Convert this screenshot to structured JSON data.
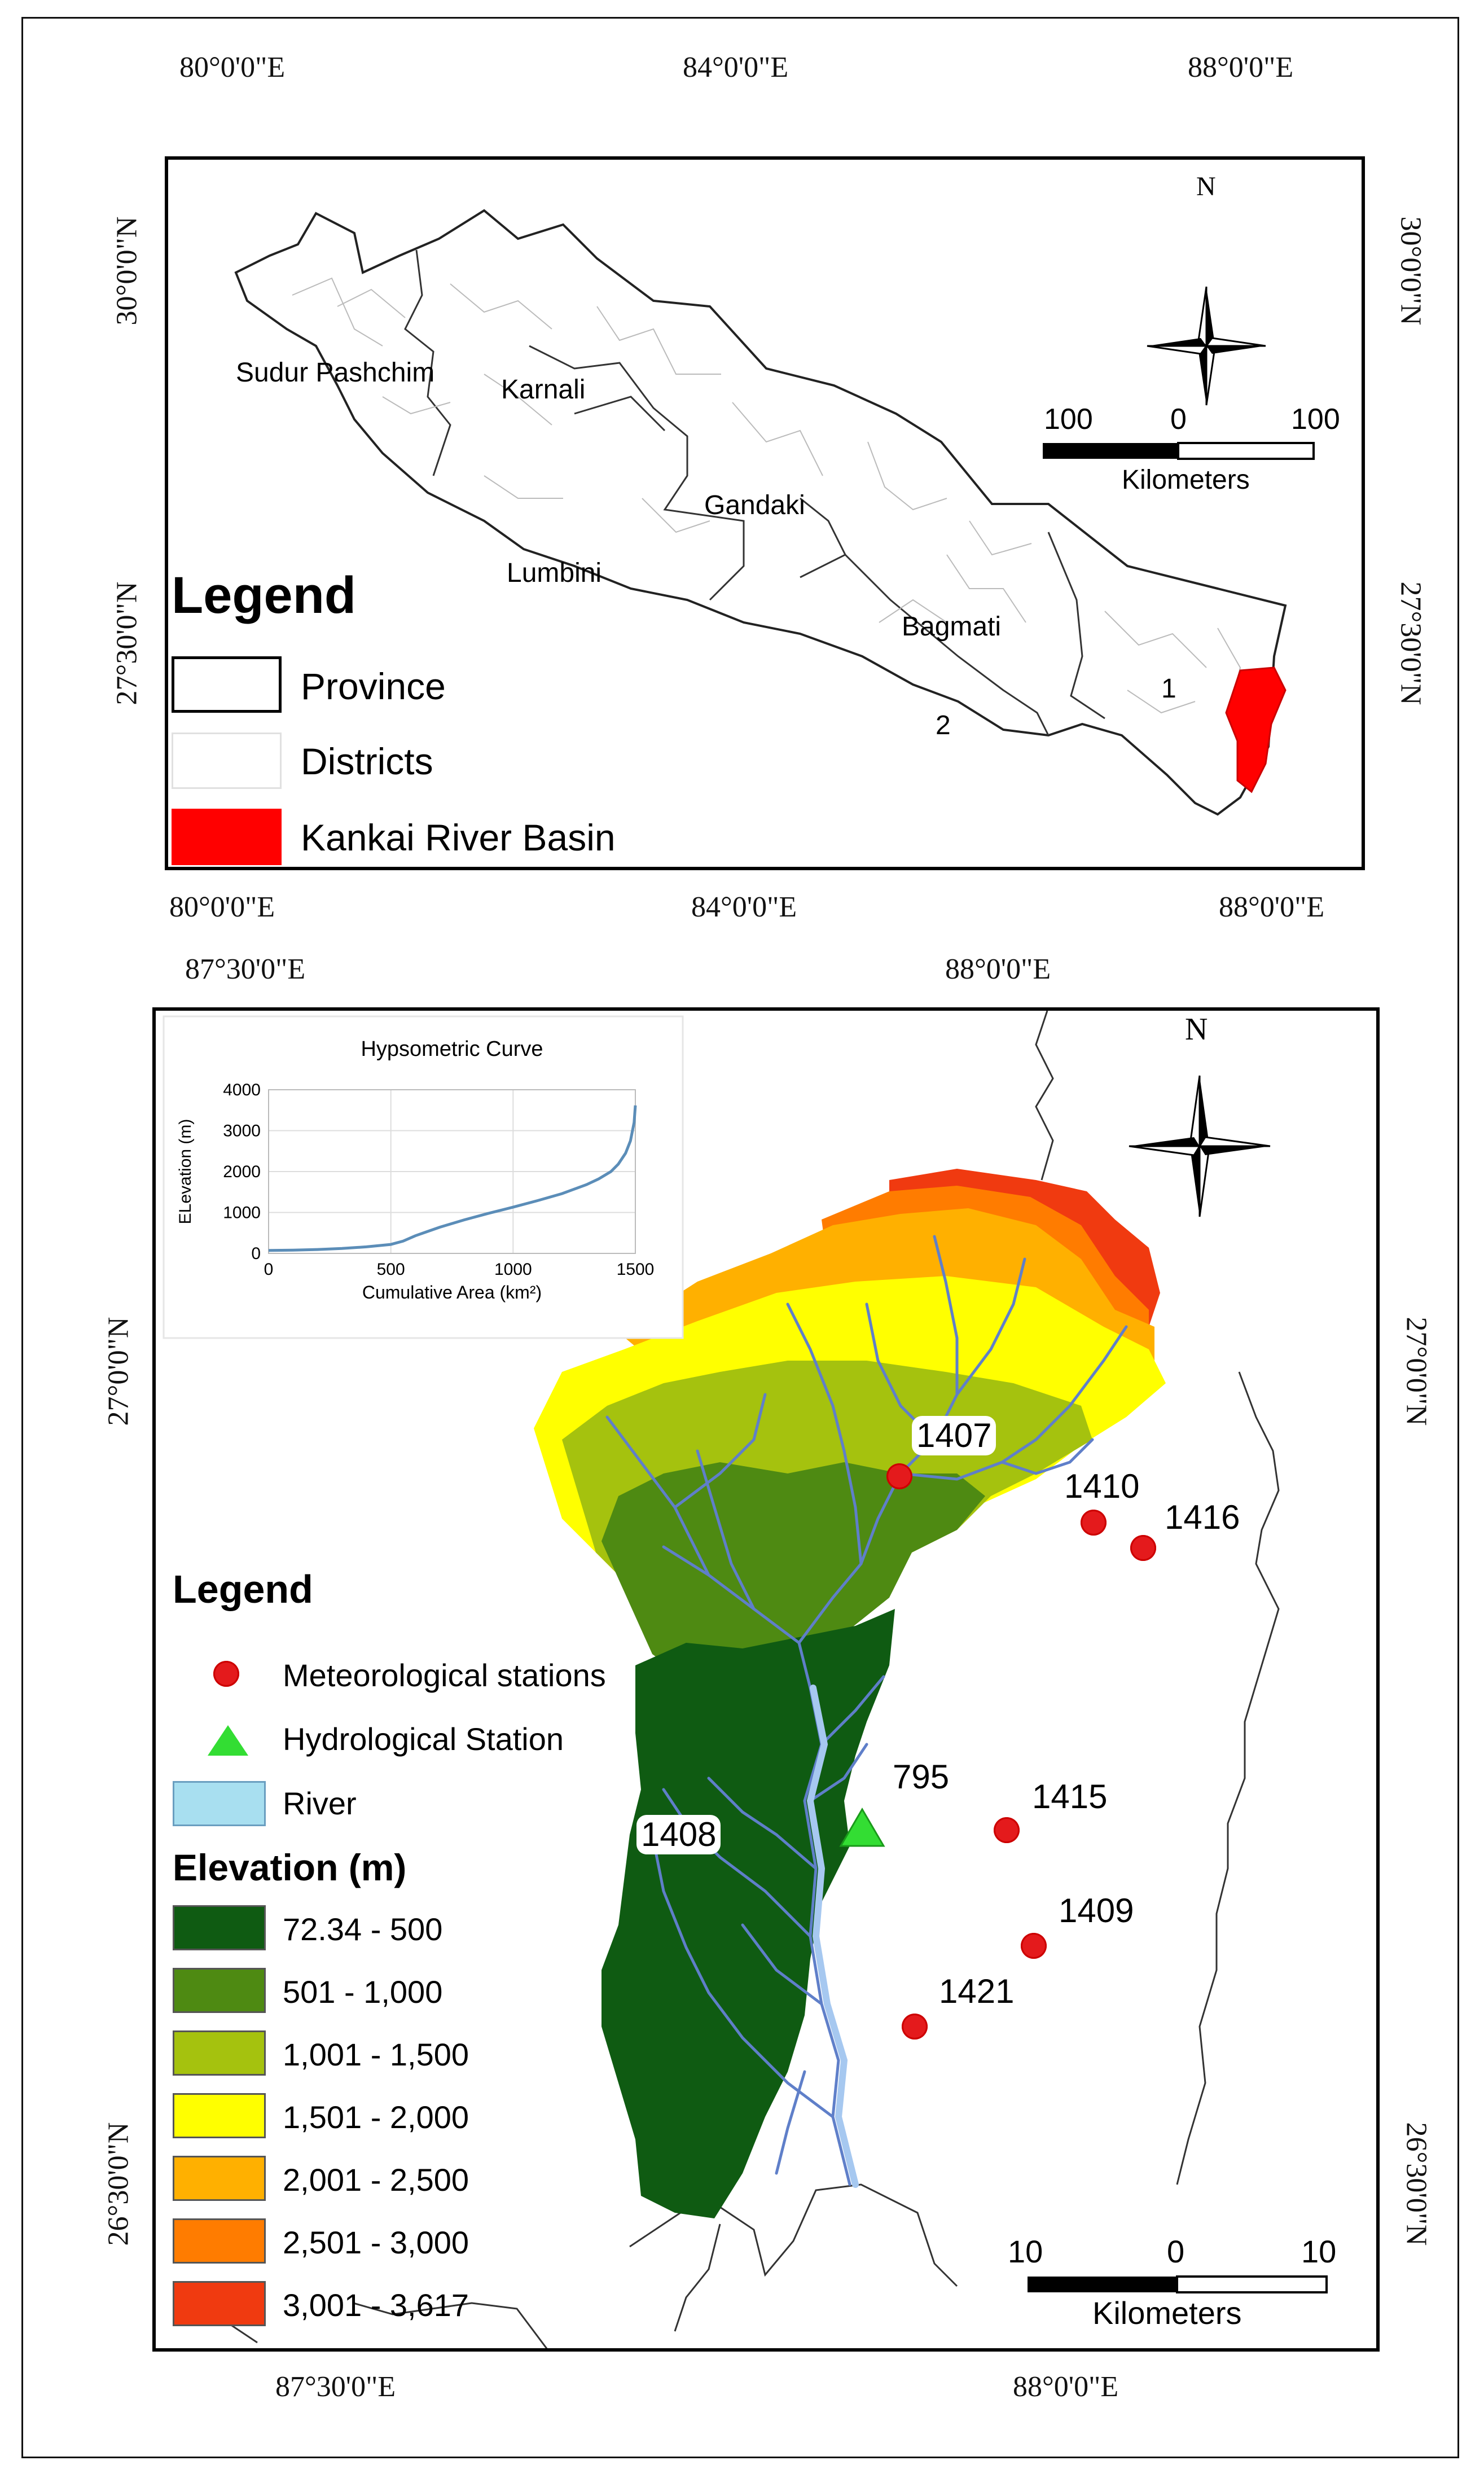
{
  "top_map": {
    "lon_labels": [
      "80°0'0\"E",
      "84°0'0\"E",
      "88°0'0\"E"
    ],
    "lat_labels": [
      "30°0'0\"N",
      "27°30'0\"N"
    ],
    "provinces": [
      "Sudur Pashchim",
      "Karnali",
      "Gandaki",
      "Lumbini",
      "Bagmati",
      "1",
      "2"
    ],
    "north": "N",
    "scale": {
      "left": "100",
      "mid": "0",
      "right": "100",
      "unit": "Kilometers"
    },
    "legend": {
      "title": "Legend",
      "items": [
        {
          "label": "Province",
          "fill": "#ffffff",
          "stroke": "#000000"
        },
        {
          "label": "Districts",
          "fill": "#ffffff",
          "stroke": "#cccccc"
        },
        {
          "label": "Kankai River Basin",
          "fill": "#ff0000",
          "stroke": "#ff0000"
        }
      ]
    }
  },
  "bottom_map": {
    "lon_labels": [
      "87°30'0\"E",
      "88°0'0\"E"
    ],
    "lat_labels": [
      "27°0'0\"N",
      "26°30'0\"N"
    ],
    "north": "N",
    "scale": {
      "left": "10",
      "mid": "0",
      "right": "10",
      "unit": "Kilometers"
    },
    "stations": [
      "1407",
      "1410",
      "1416",
      "795",
      "1415",
      "1408",
      "1409",
      "1421"
    ],
    "legend": {
      "title": "Legend",
      "met": "Meteorological stations",
      "hydro": "Hydrological Station",
      "river": "River",
      "elev_title": "Elevation (m)",
      "classes": [
        {
          "label": "72.34 - 500",
          "color": "#0f5b12"
        },
        {
          "label": "501 - 1,000",
          "color": "#4e8a12"
        },
        {
          "label": "1,001 - 1,500",
          "color": "#a5c20e"
        },
        {
          "label": "1,501 - 2,000",
          "color": "#ffff00"
        },
        {
          "label": "2,001 - 2,500",
          "color": "#ffb000"
        },
        {
          "label": "2,501 - 3,000",
          "color": "#ff7c00"
        },
        {
          "label": "3,001 - 3,617",
          "color": "#f03a10"
        }
      ]
    }
  },
  "chart_data": {
    "type": "line",
    "title": "Hypsometric Curve",
    "xlabel": "Cumulative Area (km²)",
    "ylabel": "ELevation (m)",
    "xlim": [
      0,
      1500
    ],
    "ylim": [
      0,
      4000
    ],
    "x_ticks": [
      "0",
      "500",
      "1000",
      "1500"
    ],
    "y_ticks": [
      "0",
      "1000",
      "2000",
      "3000",
      "4000"
    ],
    "series": [
      {
        "color": "#5b8db8",
        "x": [
          0,
          100,
          200,
          300,
          400,
          500,
          550,
          600,
          700,
          800,
          900,
          1000,
          1100,
          1200,
          1300,
          1350,
          1400,
          1430,
          1460,
          1480,
          1495,
          1500
        ],
        "y": [
          72,
          80,
          95,
          120,
          160,
          220,
          300,
          430,
          640,
          820,
          980,
          1130,
          1290,
          1460,
          1680,
          1820,
          2000,
          2180,
          2450,
          2750,
          3200,
          3617
        ]
      }
    ]
  }
}
